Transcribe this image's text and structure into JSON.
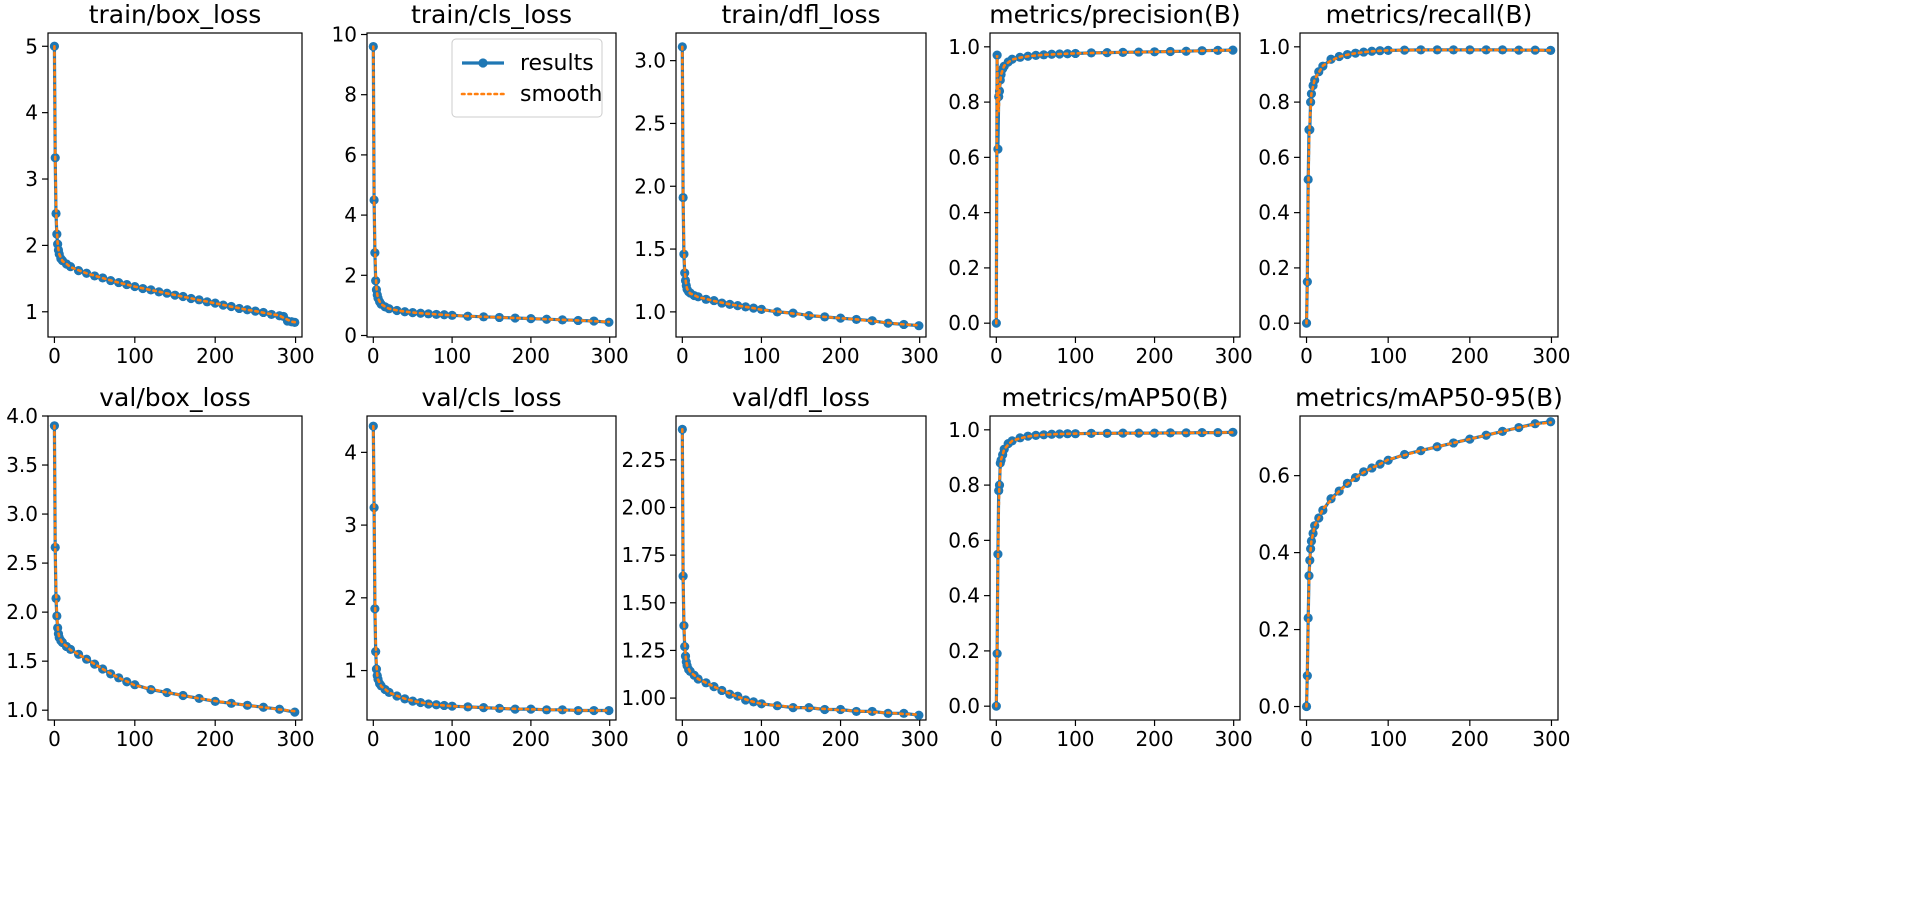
{
  "colors": {
    "results": "#1f77b4",
    "smooth": "#ff7f0e",
    "frame": "#000000",
    "background": "#ffffff"
  },
  "legend": {
    "results_label": "results",
    "smooth_label": "smooth"
  },
  "chart_data": [
    {
      "type": "line",
      "title": "train/box_loss",
      "xlim": [
        -8,
        308
      ],
      "ylim": [
        0.62,
        5.2
      ],
      "x_ticks": [
        0,
        100,
        200,
        300
      ],
      "y_ticks": [
        1,
        2,
        3,
        4,
        5
      ],
      "x": [
        0,
        1,
        2,
        3,
        4,
        5,
        6,
        8,
        10,
        15,
        20,
        30,
        40,
        50,
        60,
        70,
        80,
        90,
        100,
        110,
        120,
        130,
        140,
        150,
        160,
        170,
        180,
        190,
        200,
        210,
        220,
        230,
        240,
        250,
        260,
        270,
        280,
        285,
        290,
        295,
        299
      ],
      "values": [
        5.0,
        3.32,
        2.48,
        2.17,
        2.02,
        1.93,
        1.87,
        1.8,
        1.77,
        1.72,
        1.68,
        1.62,
        1.58,
        1.54,
        1.51,
        1.47,
        1.44,
        1.41,
        1.38,
        1.35,
        1.33,
        1.3,
        1.28,
        1.25,
        1.23,
        1.2,
        1.18,
        1.15,
        1.13,
        1.1,
        1.08,
        1.05,
        1.03,
        1.01,
        0.99,
        0.96,
        0.94,
        0.93,
        0.86,
        0.85,
        0.84
      ]
    },
    {
      "type": "line",
      "title": "train/cls_loss",
      "xlim": [
        -8,
        308
      ],
      "ylim": [
        -0.05,
        10.05
      ],
      "x_ticks": [
        0,
        100,
        200,
        300
      ],
      "y_ticks": [
        0,
        2,
        4,
        6,
        8,
        10
      ],
      "legend": "top-right",
      "x": [
        0,
        1,
        2,
        3,
        4,
        5,
        6,
        8,
        10,
        15,
        20,
        30,
        40,
        50,
        60,
        70,
        80,
        90,
        100,
        120,
        140,
        160,
        180,
        200,
        220,
        240,
        260,
        280,
        299
      ],
      "values": [
        9.6,
        4.5,
        2.75,
        1.82,
        1.52,
        1.35,
        1.24,
        1.12,
        1.04,
        0.95,
        0.89,
        0.83,
        0.79,
        0.76,
        0.74,
        0.72,
        0.7,
        0.69,
        0.67,
        0.64,
        0.62,
        0.6,
        0.58,
        0.56,
        0.54,
        0.52,
        0.5,
        0.48,
        0.44
      ]
    },
    {
      "type": "line",
      "title": "train/dfl_loss",
      "xlim": [
        -8,
        308
      ],
      "ylim": [
        0.8,
        3.22
      ],
      "x_ticks": [
        0,
        100,
        200,
        300
      ],
      "y_ticks": [
        1.0,
        1.5,
        2.0,
        2.5,
        3.0
      ],
      "x": [
        0,
        1,
        2,
        3,
        4,
        5,
        6,
        8,
        10,
        15,
        20,
        30,
        40,
        50,
        60,
        70,
        80,
        90,
        100,
        120,
        140,
        160,
        180,
        200,
        220,
        240,
        260,
        280,
        299
      ],
      "values": [
        3.11,
        1.91,
        1.46,
        1.31,
        1.25,
        1.21,
        1.18,
        1.16,
        1.15,
        1.13,
        1.12,
        1.1,
        1.09,
        1.07,
        1.06,
        1.05,
        1.04,
        1.03,
        1.02,
        1.0,
        0.99,
        0.97,
        0.96,
        0.95,
        0.94,
        0.93,
        0.91,
        0.9,
        0.89
      ]
    },
    {
      "type": "line",
      "title": "metrics/precision(B)",
      "xlim": [
        -8,
        308
      ],
      "ylim": [
        -0.05,
        1.05
      ],
      "x_ticks": [
        0,
        100,
        200,
        300
      ],
      "y_ticks": [
        0.0,
        0.2,
        0.4,
        0.6,
        0.8,
        1.0
      ],
      "x": [
        0,
        1,
        2,
        3,
        4,
        5,
        6,
        8,
        10,
        15,
        20,
        30,
        40,
        50,
        60,
        70,
        80,
        90,
        100,
        120,
        140,
        160,
        180,
        200,
        220,
        240,
        260,
        280,
        299
      ],
      "values": [
        0.0,
        0.97,
        0.63,
        0.82,
        0.84,
        0.88,
        0.9,
        0.92,
        0.93,
        0.945,
        0.955,
        0.962,
        0.966,
        0.969,
        0.971,
        0.973,
        0.974,
        0.975,
        0.976,
        0.978,
        0.979,
        0.98,
        0.981,
        0.982,
        0.983,
        0.984,
        0.986,
        0.987,
        0.988
      ]
    },
    {
      "type": "line",
      "title": "metrics/recall(B)",
      "xlim": [
        -8,
        308
      ],
      "ylim": [
        -0.05,
        1.05
      ],
      "x_ticks": [
        0,
        100,
        200,
        300
      ],
      "y_ticks": [
        0.0,
        0.2,
        0.4,
        0.6,
        0.8,
        1.0
      ],
      "x": [
        0,
        1,
        2,
        3,
        4,
        5,
        6,
        8,
        10,
        15,
        20,
        30,
        40,
        50,
        60,
        70,
        80,
        90,
        100,
        120,
        140,
        160,
        180,
        200,
        220,
        240,
        260,
        280,
        299
      ],
      "values": [
        0.0,
        0.15,
        0.52,
        0.7,
        0.7,
        0.8,
        0.83,
        0.86,
        0.88,
        0.91,
        0.93,
        0.955,
        0.965,
        0.972,
        0.977,
        0.981,
        0.984,
        0.986,
        0.987,
        0.988,
        0.989,
        0.989,
        0.989,
        0.989,
        0.989,
        0.989,
        0.988,
        0.988,
        0.987
      ]
    },
    {
      "type": "line",
      "title": "val/box_loss",
      "xlim": [
        -8,
        308
      ],
      "ylim": [
        0.9,
        4.0
      ],
      "x_ticks": [
        0,
        100,
        200,
        300
      ],
      "y_ticks": [
        1.0,
        1.5,
        2.0,
        2.5,
        3.0,
        3.5,
        4.0
      ],
      "x": [
        0,
        1,
        2,
        3,
        4,
        5,
        6,
        8,
        10,
        15,
        20,
        30,
        40,
        50,
        60,
        70,
        80,
        90,
        100,
        120,
        140,
        160,
        180,
        200,
        220,
        240,
        260,
        280,
        299
      ],
      "values": [
        3.9,
        2.66,
        2.14,
        1.96,
        1.84,
        1.78,
        1.74,
        1.71,
        1.69,
        1.65,
        1.62,
        1.57,
        1.52,
        1.47,
        1.42,
        1.37,
        1.33,
        1.29,
        1.26,
        1.21,
        1.18,
        1.15,
        1.12,
        1.09,
        1.07,
        1.05,
        1.03,
        1.01,
        0.98
      ]
    },
    {
      "type": "line",
      "title": "val/cls_loss",
      "xlim": [
        -8,
        308
      ],
      "ylim": [
        0.32,
        4.5
      ],
      "x_ticks": [
        0,
        100,
        200,
        300
      ],
      "y_ticks": [
        1,
        2,
        3,
        4
      ],
      "x": [
        0,
        1,
        2,
        3,
        4,
        5,
        6,
        8,
        10,
        15,
        20,
        30,
        40,
        50,
        60,
        70,
        80,
        90,
        100,
        120,
        140,
        160,
        180,
        200,
        220,
        240,
        260,
        280,
        299
      ],
      "values": [
        4.36,
        3.24,
        1.85,
        1.26,
        1.02,
        0.93,
        0.88,
        0.82,
        0.79,
        0.74,
        0.7,
        0.65,
        0.61,
        0.58,
        0.56,
        0.54,
        0.53,
        0.52,
        0.51,
        0.5,
        0.49,
        0.48,
        0.47,
        0.47,
        0.46,
        0.46,
        0.45,
        0.45,
        0.45
      ]
    },
    {
      "type": "line",
      "title": "val/dfl_loss",
      "xlim": [
        -8,
        308
      ],
      "ylim": [
        0.885,
        2.48
      ],
      "x_ticks": [
        0,
        100,
        200,
        300
      ],
      "y_ticks": [
        1.0,
        1.25,
        1.5,
        1.75,
        2.0,
        2.25
      ],
      "x": [
        0,
        1,
        2,
        3,
        4,
        5,
        6,
        8,
        10,
        15,
        20,
        30,
        40,
        50,
        60,
        70,
        80,
        90,
        100,
        120,
        140,
        160,
        180,
        200,
        220,
        240,
        260,
        280,
        299
      ],
      "values": [
        2.41,
        1.64,
        1.38,
        1.27,
        1.22,
        1.19,
        1.17,
        1.15,
        1.14,
        1.12,
        1.1,
        1.08,
        1.06,
        1.04,
        1.02,
        1.01,
        0.99,
        0.98,
        0.97,
        0.96,
        0.95,
        0.95,
        0.94,
        0.94,
        0.93,
        0.93,
        0.92,
        0.92,
        0.91
      ]
    },
    {
      "type": "line",
      "title": "metrics/mAP50(B)",
      "xlim": [
        -8,
        308
      ],
      "ylim": [
        -0.05,
        1.05
      ],
      "x_ticks": [
        0,
        100,
        200,
        300
      ],
      "y_ticks": [
        0.0,
        0.2,
        0.4,
        0.6,
        0.8,
        1.0
      ],
      "x": [
        0,
        1,
        2,
        3,
        4,
        5,
        6,
        8,
        10,
        15,
        20,
        30,
        40,
        50,
        60,
        70,
        80,
        90,
        100,
        120,
        140,
        160,
        180,
        200,
        220,
        240,
        260,
        280,
        299
      ],
      "values": [
        0.0,
        0.19,
        0.55,
        0.78,
        0.8,
        0.88,
        0.89,
        0.91,
        0.93,
        0.95,
        0.96,
        0.971,
        0.977,
        0.98,
        0.982,
        0.984,
        0.985,
        0.986,
        0.986,
        0.987,
        0.987,
        0.988,
        0.988,
        0.988,
        0.989,
        0.989,
        0.99,
        0.99,
        0.991
      ]
    },
    {
      "type": "line",
      "title": "metrics/mAP50-95(B)",
      "xlim": [
        -8,
        308
      ],
      "ylim": [
        -0.035,
        0.755
      ],
      "x_ticks": [
        0,
        100,
        200,
        300
      ],
      "y_ticks": [
        0.0,
        0.2,
        0.4,
        0.6
      ],
      "x": [
        0,
        1,
        2,
        3,
        4,
        5,
        6,
        8,
        10,
        15,
        20,
        30,
        40,
        50,
        60,
        70,
        80,
        90,
        100,
        120,
        140,
        160,
        180,
        200,
        220,
        240,
        260,
        280,
        299
      ],
      "values": [
        0.0,
        0.08,
        0.23,
        0.34,
        0.38,
        0.41,
        0.43,
        0.45,
        0.47,
        0.49,
        0.51,
        0.54,
        0.56,
        0.58,
        0.595,
        0.61,
        0.62,
        0.63,
        0.64,
        0.655,
        0.665,
        0.675,
        0.685,
        0.695,
        0.705,
        0.715,
        0.725,
        0.735,
        0.74
      ]
    }
  ]
}
